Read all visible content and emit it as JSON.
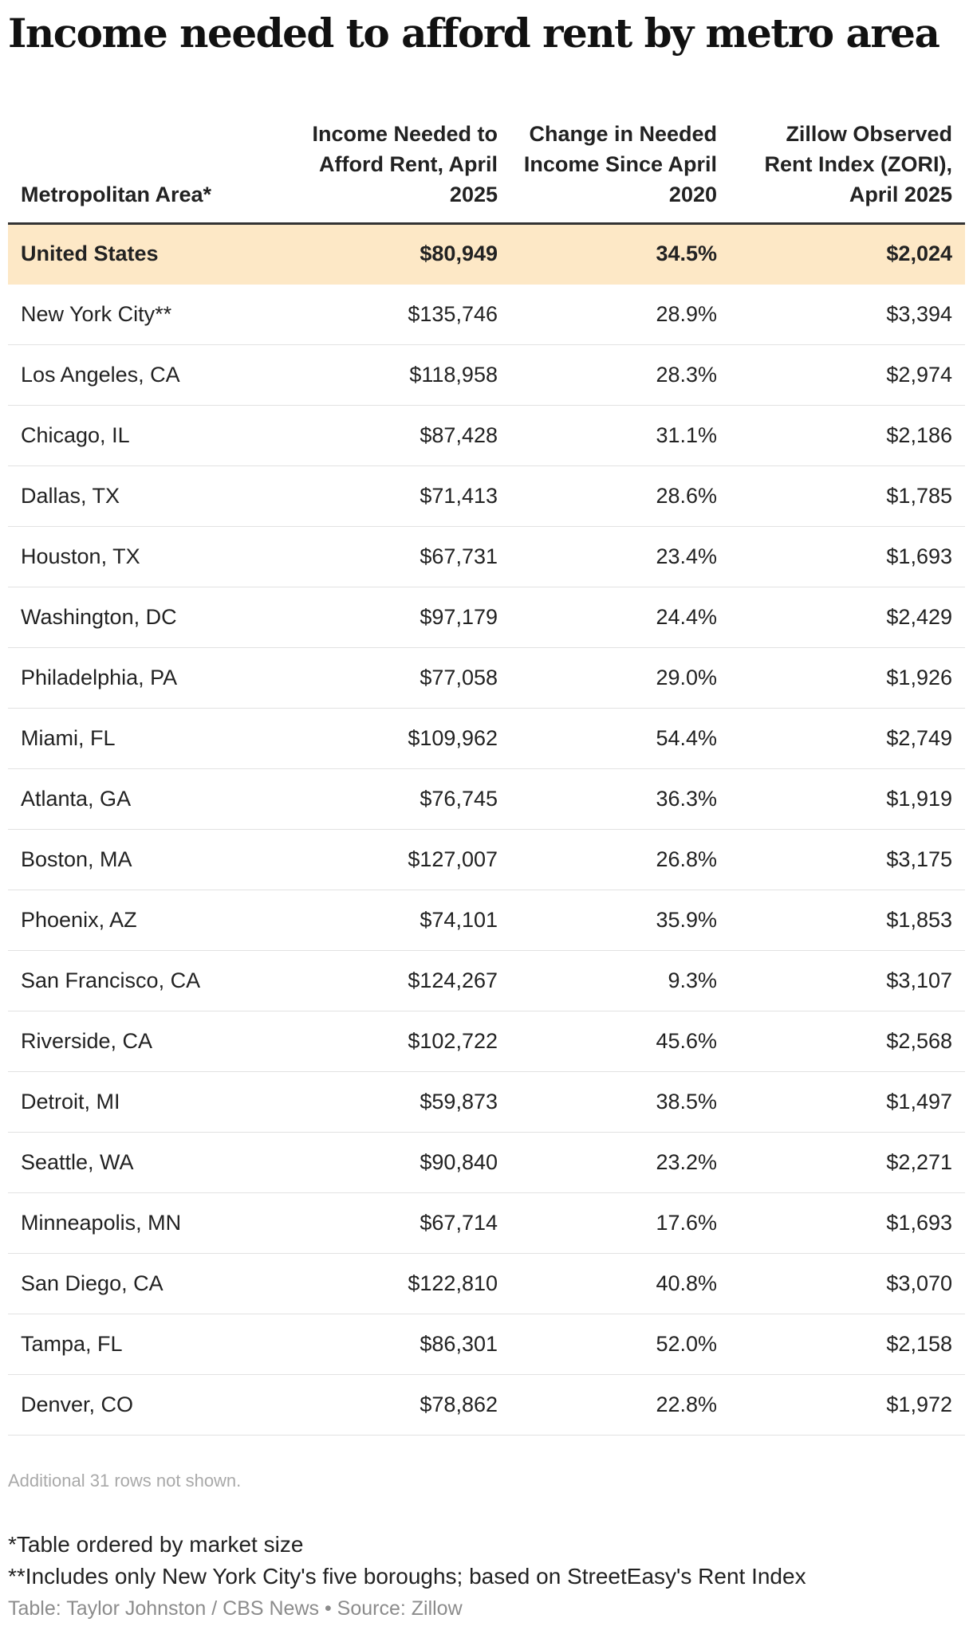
{
  "chart_data": {
    "type": "table",
    "title": "Income needed to afford rent by metro area",
    "columns": [
      "Metropolitan Area*",
      "Income Needed to Afford Rent, April 2025",
      "Change in Needed Income Since April 2020",
      "Zillow Observed Rent Index (ZORI), April 2025"
    ],
    "rows": [
      [
        "United States",
        "$80,949",
        "34.5%",
        "$2,024"
      ],
      [
        "New York City**",
        "$135,746",
        "28.9%",
        "$3,394"
      ],
      [
        "Los Angeles, CA",
        "$118,958",
        "28.3%",
        "$2,974"
      ],
      [
        "Chicago, IL",
        "$87,428",
        "31.1%",
        "$2,186"
      ],
      [
        "Dallas, TX",
        "$71,413",
        "28.6%",
        "$1,785"
      ],
      [
        "Houston, TX",
        "$67,731",
        "23.4%",
        "$1,693"
      ],
      [
        "Washington, DC",
        "$97,179",
        "24.4%",
        "$2,429"
      ],
      [
        "Philadelphia, PA",
        "$77,058",
        "29.0%",
        "$1,926"
      ],
      [
        "Miami, FL",
        "$109,962",
        "54.4%",
        "$2,749"
      ],
      [
        "Atlanta, GA",
        "$76,745",
        "36.3%",
        "$1,919"
      ],
      [
        "Boston, MA",
        "$127,007",
        "26.8%",
        "$3,175"
      ],
      [
        "Phoenix, AZ",
        "$74,101",
        "35.9%",
        "$1,853"
      ],
      [
        "San Francisco, CA",
        "$124,267",
        "9.3%",
        "$3,107"
      ],
      [
        "Riverside, CA",
        "$102,722",
        "45.6%",
        "$2,568"
      ],
      [
        "Detroit, MI",
        "$59,873",
        "38.5%",
        "$1,497"
      ],
      [
        "Seattle, WA",
        "$90,840",
        "23.2%",
        "$2,271"
      ],
      [
        "Minneapolis, MN",
        "$67,714",
        "17.6%",
        "$1,693"
      ],
      [
        "San Diego, CA",
        "$122,810",
        "40.8%",
        "$3,070"
      ],
      [
        "Tampa, FL",
        "$86,301",
        "52.0%",
        "$2,158"
      ],
      [
        "Denver, CO",
        "$78,862",
        "22.8%",
        "$1,972"
      ]
    ],
    "highlight_row": 0,
    "highlight_color": "#fde8c6"
  },
  "rows_note": "Additional 31 rows not shown.",
  "notes": [
    "*Table ordered by market size",
    "**Includes only New York City's five boroughs; based on StreetEasy's Rent Index"
  ],
  "credit": "Table: Taylor Johnston / CBS News • Source: Zillow"
}
